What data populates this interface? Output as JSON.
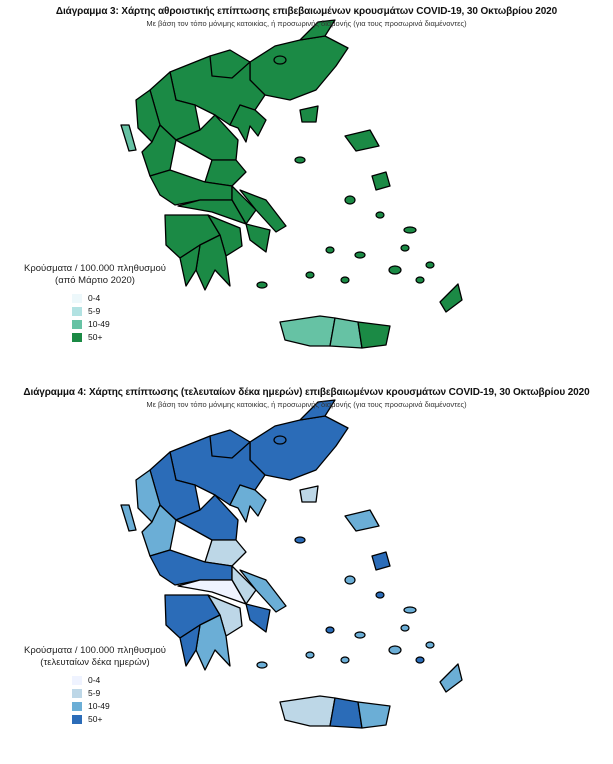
{
  "maps": [
    {
      "title": "Διάγραμμα 3: Χάρτης αθροιστικής επίπτωσης επιβεβαιωμένων κρουσμάτων COVID-19, 30 Οκτωβρίου 2020",
      "subtitle": "Με βάση τον τόπο μόνιμης κατοικίας, ή προσωρινής διαμονής (για τους προσωρινά διαμένοντες)",
      "legend": {
        "title_line1": "Κρούσματα / 100.000 πληθυσμού",
        "title_line2": "(από Μάρτιο 2020)",
        "items": [
          {
            "label": "0-4",
            "color": "#edf8fb"
          },
          {
            "label": "5-9",
            "color": "#b2e2e2"
          },
          {
            "label": "10-49",
            "color": "#66c2a4"
          },
          {
            "label": "50+",
            "color": "#1b8a45"
          }
        ]
      },
      "region_categories": [
        3,
        3,
        3,
        3,
        3,
        3,
        3,
        3,
        3,
        3,
        3,
        3,
        3,
        3,
        3,
        3,
        3,
        3,
        3,
        2,
        2,
        2,
        3,
        3,
        3,
        3,
        3
      ]
    },
    {
      "title": "Διάγραμμα 4: Χάρτης επίπτωσης (τελευταίων δέκα ημερών) επιβεβαιωμένων κρουσμάτων COVID-19, 30 Οκτωβρίου 2020",
      "subtitle": "Με βάση τον τόπο μόνιμης κατοικίας, ή προσωρινής διαμονής (για τους προσωρινά διαμένοντες)",
      "legend": {
        "title_line1": "Κρούσματα / 100.000 πληθυσμού",
        "title_line2": "(τελευταίων δέκα ημερών)",
        "items": [
          {
            "label": "0-4",
            "color": "#eff3ff"
          },
          {
            "label": "5-9",
            "color": "#bdd7e7"
          },
          {
            "label": "10-49",
            "color": "#6baed6"
          },
          {
            "label": "50+",
            "color": "#2b6cb8"
          }
        ]
      },
      "region_categories": [
        3,
        3,
        3,
        3,
        2,
        3,
        2,
        2,
        3,
        1,
        3,
        1,
        0,
        2,
        3,
        3,
        1,
        2,
        3,
        2,
        1,
        3,
        2,
        2,
        1,
        2,
        3
      ]
    }
  ]
}
